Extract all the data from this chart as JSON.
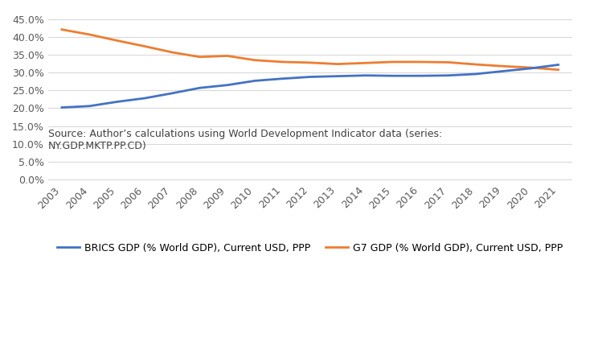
{
  "years": [
    2003,
    2004,
    2005,
    2006,
    2007,
    2008,
    2009,
    2010,
    2011,
    2012,
    2013,
    2014,
    2015,
    2016,
    2017,
    2018,
    2019,
    2020,
    2021
  ],
  "brics": [
    0.202,
    0.206,
    0.218,
    0.228,
    0.242,
    0.257,
    0.265,
    0.277,
    0.283,
    0.288,
    0.29,
    0.292,
    0.291,
    0.291,
    0.292,
    0.296,
    0.304,
    0.312,
    0.322
  ],
  "g7": [
    0.421,
    0.407,
    0.39,
    0.374,
    0.357,
    0.344,
    0.347,
    0.335,
    0.33,
    0.328,
    0.324,
    0.327,
    0.33,
    0.33,
    0.329,
    0.323,
    0.318,
    0.314,
    0.308
  ],
  "brics_color": "#4472C4",
  "g7_color": "#ED7D31",
  "line_width": 2.0,
  "yticks": [
    0.0,
    0.05,
    0.1,
    0.15,
    0.2,
    0.25,
    0.3,
    0.35,
    0.4,
    0.45
  ],
  "ylim": [
    -0.005,
    0.47
  ],
  "source_text": "Source: Author’s calculations using World Development Indicator data (series:\nNY.GDP.MKTP.PP.CD)",
  "legend_brics": "BRICS GDP (% World GDP), Current USD, PPP",
  "legend_g7": "G7 GDP (% World GDP), Current USD, PPP",
  "background_color": "#ffffff",
  "grid_color": "#d9d9d9",
  "source_fontsize": 9.0
}
